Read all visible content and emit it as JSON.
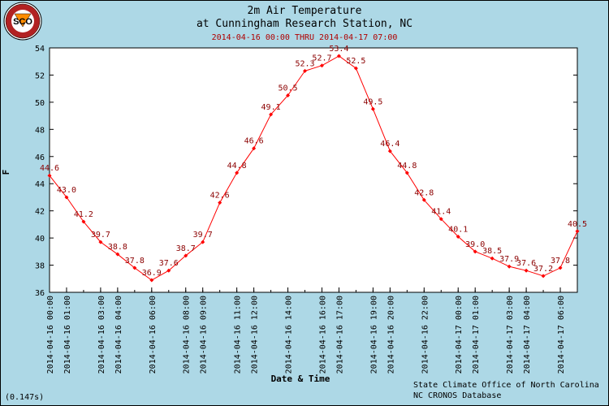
{
  "logo": {
    "text": "SCO",
    "ring_text": "STATE CLIMATE OFFICE · NORTH CAROLINA"
  },
  "header": {
    "title_line1": "2m Air Temperature",
    "title_line2": "at Cunningham Research Station, NC",
    "date_range": "2014-04-16 00:00 THRU 2014-04-17 07:00"
  },
  "footer": {
    "credit_line1": "State Climate Office of North Carolina",
    "credit_line2": "NC CRONOS Database",
    "timing": "(0.147s)"
  },
  "colors": {
    "background": "#add8e6",
    "series": "#ff0000",
    "labels": "#8b0000",
    "subtitle": "#b00000"
  },
  "chart_data": {
    "type": "line",
    "title": "2m Air Temperature at Cunningham Research Station, NC",
    "subtitle": "2014-04-16 00:00 THRU 2014-04-17 07:00",
    "xlabel": "Date & Time",
    "ylabel": "F",
    "ylim": [
      36,
      54
    ],
    "yticks": [
      36,
      38,
      40,
      42,
      44,
      46,
      48,
      50,
      52,
      54
    ],
    "xlim": [
      "2014-04-16 00:00",
      "2014-04-17 07:00"
    ],
    "x_tick_labels": [
      "2014-04-16 00:00",
      "2014-04-16 01:00",
      "2014-04-16 03:00",
      "2014-04-16 04:00",
      "2014-04-16 06:00",
      "2014-04-16 08:00",
      "2014-04-16 09:00",
      "2014-04-16 11:00",
      "2014-04-16 12:00",
      "2014-04-16 14:00",
      "2014-04-16 16:00",
      "2014-04-16 17:00",
      "2014-04-16 19:00",
      "2014-04-16 20:00",
      "2014-04-16 22:00",
      "2014-04-17 00:00",
      "2014-04-17 01:00",
      "2014-04-17 03:00",
      "2014-04-17 04:00",
      "2014-04-17 06:00"
    ],
    "grid": false,
    "series": [
      {
        "x": [
          "2014-04-16 00:00",
          "2014-04-16 01:00",
          "2014-04-16 02:00",
          "2014-04-16 03:00",
          "2014-04-16 04:00",
          "2014-04-16 05:00",
          "2014-04-16 06:00",
          "2014-04-16 07:00",
          "2014-04-16 08:00",
          "2014-04-16 09:00",
          "2014-04-16 10:00",
          "2014-04-16 11:00",
          "2014-04-16 12:00",
          "2014-04-16 13:00",
          "2014-04-16 14:00",
          "2014-04-16 15:00",
          "2014-04-16 16:00",
          "2014-04-16 17:00",
          "2014-04-16 18:00",
          "2014-04-16 19:00",
          "2014-04-16 20:00",
          "2014-04-16 21:00",
          "2014-04-16 22:00",
          "2014-04-16 23:00",
          "2014-04-17 00:00",
          "2014-04-17 01:00",
          "2014-04-17 02:00",
          "2014-04-17 03:00",
          "2014-04-17 04:00",
          "2014-04-17 05:00",
          "2014-04-17 06:00",
          "2014-04-17 07:00"
        ],
        "values": [
          44.6,
          43.0,
          41.2,
          39.7,
          38.8,
          37.8,
          36.9,
          37.6,
          38.7,
          39.7,
          42.6,
          44.8,
          46.6,
          49.1,
          50.5,
          52.3,
          52.7,
          53.4,
          52.5,
          49.5,
          46.4,
          44.8,
          42.8,
          41.4,
          40.1,
          39.0,
          38.5,
          37.9,
          37.6,
          37.2,
          37.8,
          40.5
        ],
        "labels": [
          "44.6",
          "43.0",
          "41.2",
          "39.7",
          "38.8",
          "37.8",
          "36.9",
          "37.6",
          "38.7",
          "39.7",
          "42.6",
          "44.8",
          "46.6",
          "49.1",
          "50.5",
          "52.3",
          "52.7",
          "53.4",
          "52.5",
          "49.5",
          "46.4",
          "44.8",
          "42.8",
          "41.4",
          "40.1",
          "39.0",
          "38.5",
          "37.9",
          "37.6",
          "37.2",
          "37.8",
          "40.5"
        ]
      }
    ]
  }
}
